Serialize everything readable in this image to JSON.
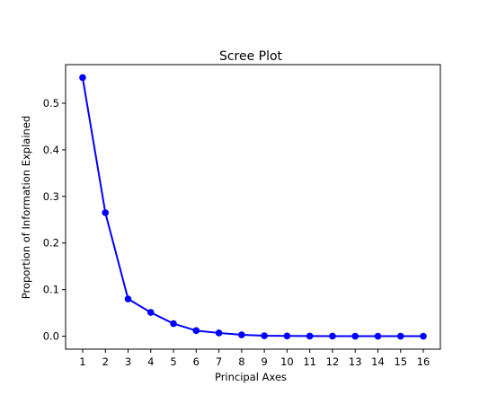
{
  "chart_data": {
    "type": "line",
    "title": "Scree Plot",
    "xlabel": "Principal Axes",
    "ylabel": "Proportion of Information Explained",
    "x": [
      1,
      2,
      3,
      4,
      5,
      6,
      7,
      8,
      9,
      10,
      11,
      12,
      13,
      14,
      15,
      16
    ],
    "series": [
      {
        "values": [
          0.555,
          0.265,
          0.08,
          0.051,
          0.027,
          0.012,
          0.007,
          0.003,
          0.001,
          0.0005,
          0.0003,
          0.0002,
          0.0001,
          0.0001,
          0.0001,
          0.0001
        ],
        "color": "#0000ff",
        "marker": "circle"
      }
    ],
    "xlim": [
      0.25,
      16.75
    ],
    "ylim": [
      -0.0278,
      0.5828
    ],
    "xticks": [
      1,
      2,
      3,
      4,
      5,
      6,
      7,
      8,
      9,
      10,
      11,
      12,
      13,
      14,
      15,
      16
    ],
    "yticks": [
      0.0,
      0.1,
      0.2,
      0.3,
      0.4,
      0.5
    ],
    "ytick_labels": [
      "0.0",
      "0.1",
      "0.2",
      "0.3",
      "0.4",
      "0.5"
    ],
    "grid": false,
    "legend": "none"
  }
}
